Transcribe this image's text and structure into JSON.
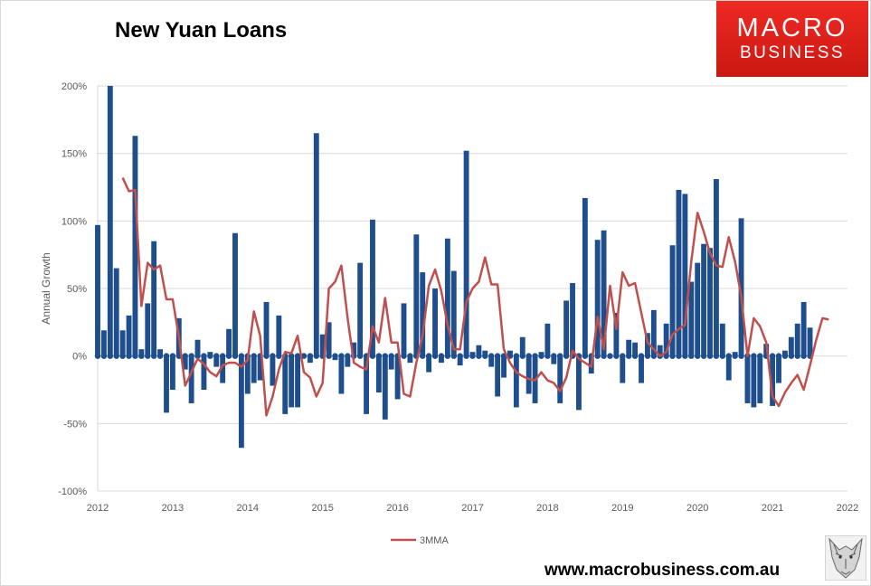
{
  "header": {
    "title": "New Yuan Loans"
  },
  "logo": {
    "line1": "MACRO",
    "line2": "BUSINESS"
  },
  "footer": {
    "website": "www.macrobusiness.com.au"
  },
  "colors": {
    "bars": "#1f4e8c",
    "line": "#c0504d",
    "grid": "#d9d9d9",
    "axis_text": "#595959"
  },
  "chart_data": {
    "type": "bar",
    "title": "New Yuan Loans",
    "xlabel": "",
    "ylabel": "Annual Growth",
    "ylim": [
      -100,
      200
    ],
    "yticks": [
      -100,
      -50,
      0,
      50,
      100,
      150,
      200
    ],
    "ytick_labels": [
      "-100%",
      "-50%",
      "0%",
      "50%",
      "100%",
      "150%",
      "200%"
    ],
    "xlim": [
      2012,
      2022
    ],
    "xticks": [
      2012,
      2013,
      2014,
      2015,
      2016,
      2017,
      2018,
      2019,
      2020,
      2021,
      2022
    ],
    "xtick_labels": [
      "2012",
      "2013",
      "2014",
      "2015",
      "2016",
      "2017",
      "2018",
      "2019",
      "2020",
      "2021",
      "2022"
    ],
    "grid": "horizontal",
    "legend": {
      "position": "bottom",
      "entries": [
        "3MMA"
      ]
    },
    "series": [
      {
        "kind": "bar",
        "start": [
          2012,
          1
        ],
        "frequency": "monthly",
        "values": [
          97,
          19,
          200,
          65,
          19,
          30,
          163,
          5,
          39,
          85,
          5,
          -42,
          -25,
          28,
          -10,
          -35,
          12,
          -25,
          3,
          -8,
          -20,
          20,
          91,
          -68,
          -28,
          -20,
          -18,
          40,
          -22,
          30,
          -43,
          -38,
          -38,
          0,
          -5,
          165,
          16,
          25,
          -3,
          -28,
          -8,
          10,
          69,
          -43,
          101,
          -27,
          -47,
          -10,
          -32,
          39,
          -5,
          90,
          62,
          -12,
          50,
          -5,
          87,
          63,
          -7,
          152,
          3,
          8,
          4,
          -8,
          -30,
          -16,
          4,
          -38,
          14,
          -28,
          -35,
          3,
          24,
          -6,
          -35,
          41,
          54,
          -40,
          117,
          -13,
          86,
          93,
          0,
          32,
          -20,
          12,
          10,
          -20,
          17,
          34,
          8,
          24,
          82,
          123,
          120,
          55,
          69,
          83,
          80,
          131,
          24,
          -18,
          3,
          102,
          -35,
          -38,
          -35,
          9,
          -37,
          -20,
          4,
          14,
          24,
          40,
          21
        ]
      },
      {
        "kind": "line",
        "name": "3MMA",
        "start": [
          2012,
          5
        ],
        "frequency": "monthly",
        "values": [
          132,
          122,
          123,
          37,
          69,
          64,
          67,
          42,
          42,
          14,
          -22,
          -12,
          -2,
          -6,
          -12,
          -15,
          -7,
          -5,
          -5,
          -8,
          -3,
          33,
          15,
          -44,
          -30,
          -10,
          3,
          2,
          15,
          -12,
          -16,
          -30,
          -20,
          50,
          55,
          67,
          28,
          -5,
          -8,
          -10,
          22,
          10,
          43,
          10,
          10,
          -28,
          -30,
          -5,
          15,
          52,
          64,
          48,
          23,
          5,
          5,
          40,
          50,
          55,
          73,
          53,
          53,
          5,
          -5,
          -12,
          -15,
          -17,
          -18,
          -12,
          -18,
          -20,
          -26,
          -16,
          4,
          -2,
          -5,
          -8,
          29,
          5,
          52,
          20,
          62,
          52,
          54,
          32,
          10,
          5,
          0,
          3,
          16,
          20,
          23,
          70,
          106,
          92,
          76,
          67,
          66,
          88,
          70,
          44,
          0,
          28,
          22,
          10,
          -30,
          -37,
          -27,
          -20,
          -14,
          -25,
          -7,
          12,
          28,
          27
        ]
      }
    ]
  }
}
